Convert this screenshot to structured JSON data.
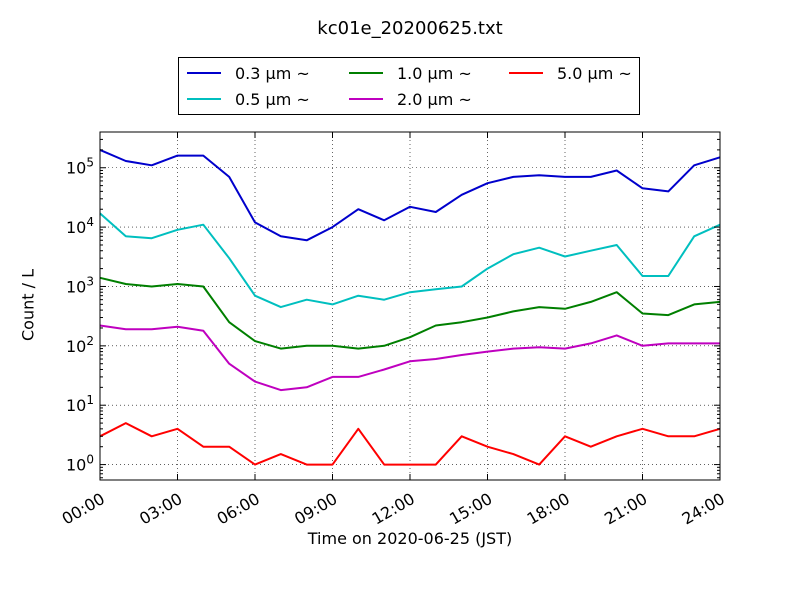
{
  "chart_data": {
    "type": "line",
    "title": "kc01e_20200625.txt",
    "xlabel": "Time on 2020-06-25 (JST)",
    "ylabel": "Count / L",
    "yscale": "log",
    "ylim": [
      0.55,
      400000
    ],
    "xlim": [
      0,
      24
    ],
    "grid": true,
    "legend_position": "top",
    "x_ticks": [
      "00:00",
      "03:00",
      "06:00",
      "09:00",
      "12:00",
      "15:00",
      "18:00",
      "21:00",
      "24:00"
    ],
    "y_ticks": [
      "10^0",
      "10^1",
      "10^2",
      "10^3",
      "10^4",
      "10^5"
    ],
    "x_hours": [
      0,
      1,
      2,
      3,
      4,
      5,
      6,
      7,
      8,
      9,
      10,
      11,
      12,
      13,
      14,
      15,
      16,
      17,
      18,
      19,
      20,
      21,
      22,
      23,
      24
    ],
    "series": [
      {
        "name": "0.3 μm ~",
        "color": "#0000cc",
        "values": [
          200000,
          130000,
          110000,
          160000,
          160000,
          70000,
          12000,
          7000,
          6000,
          10000,
          20000,
          13000,
          22000,
          18000,
          35000,
          55000,
          70000,
          75000,
          70000,
          70000,
          90000,
          45000,
          40000,
          110000,
          150000
        ]
      },
      {
        "name": "0.5 μm ~",
        "color": "#00bfbf",
        "values": [
          17000,
          7000,
          6500,
          9000,
          11000,
          3000,
          700,
          450,
          600,
          500,
          700,
          600,
          800,
          900,
          1000,
          2000,
          3500,
          4500,
          3200,
          4000,
          5000,
          1500,
          1500,
          7000,
          11000
        ]
      },
      {
        "name": "1.0 μm ~",
        "color": "#007f00",
        "values": [
          1400,
          1100,
          1000,
          1100,
          1000,
          250,
          120,
          90,
          100,
          100,
          90,
          100,
          140,
          220,
          250,
          300,
          380,
          450,
          420,
          550,
          800,
          350,
          330,
          500,
          550
        ]
      },
      {
        "name": "2.0 μm ~",
        "color": "#bf00bf",
        "values": [
          220,
          190,
          190,
          210,
          180,
          50,
          25,
          18,
          20,
          30,
          30,
          40,
          55,
          60,
          70,
          80,
          90,
          95,
          90,
          110,
          150,
          100,
          110,
          110,
          110
        ]
      },
      {
        "name": "5.0 μm ~",
        "color": "#ff0000",
        "values": [
          3,
          5,
          3,
          4,
          2,
          2,
          1,
          1.5,
          1,
          1,
          4,
          1,
          1,
          1,
          3,
          2,
          1.5,
          1,
          3,
          2,
          3,
          4,
          3,
          3,
          4
        ]
      }
    ]
  }
}
